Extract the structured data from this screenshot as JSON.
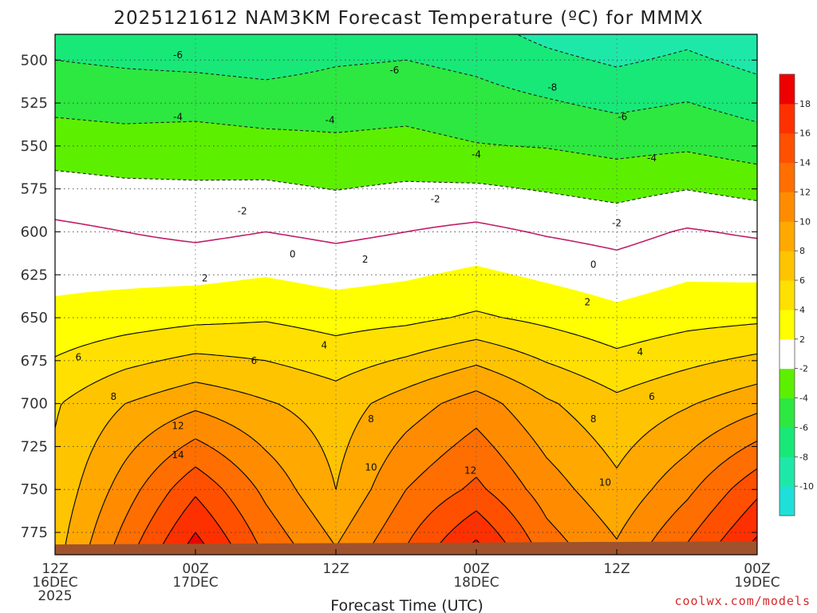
{
  "chart_data": {
    "type": "heatmap",
    "title": "2025121612 NAM3KM Forecast Temperature (ºC) for MMMX",
    "xlabel": "Forecast Time (UTC)",
    "ylabel": "",
    "x_ticks": [
      {
        "hours": 0,
        "line1": "12Z",
        "line2": "16DEC",
        "line3": "2025"
      },
      {
        "hours": 12,
        "line1": "00Z",
        "line2": "17DEC",
        "line3": ""
      },
      {
        "hours": 24,
        "line1": "12Z",
        "line2": "",
        "line3": ""
      },
      {
        "hours": 36,
        "line1": "00Z",
        "line2": "18DEC",
        "line3": ""
      },
      {
        "hours": 48,
        "line1": "12Z",
        "line2": "",
        "line3": ""
      },
      {
        "hours": 60,
        "line1": "00Z",
        "line2": "19DEC",
        "line3": ""
      }
    ],
    "xlim": [
      0,
      60
    ],
    "y_ticks": [
      500,
      525,
      550,
      575,
      600,
      625,
      650,
      675,
      700,
      725,
      750,
      775
    ],
    "ylim_hPa": [
      485,
      788
    ],
    "surface_pressure_hPa": 782,
    "colorbar": {
      "levels": [
        -12,
        -10,
        -8,
        -6,
        -4,
        -2,
        2,
        4,
        6,
        8,
        10,
        12,
        14,
        16,
        18,
        20
      ],
      "tick_labels": [
        "-10",
        "-8",
        "-6",
        "-4",
        "-2",
        "2",
        "4",
        "6",
        "8",
        "10",
        "12",
        "14",
        "16",
        "18"
      ],
      "colors": [
        "#1ee0d8",
        "#1ee8a8",
        "#18e878",
        "#2de840",
        "#5cf000",
        "#ffffff",
        "#ffff00",
        "#ffe000",
        "#ffc400",
        "#ffa800",
        "#ff8c00",
        "#ff6e00",
        "#ff5000",
        "#ff3000",
        "#ee0000"
      ]
    },
    "series": [
      {
        "name": "T at 500 hPa",
        "values": [
          -6.0,
          -6.3,
          -6.5,
          -6.8,
          -6.2,
          -6.0,
          -6.5,
          -7.5,
          -8.3,
          -7.6,
          -8.6
        ]
      },
      {
        "name": "T at 550 hPa",
        "values": [
          -3.0,
          -3.2,
          -3.0,
          -3.3,
          -3.6,
          -3.4,
          -3.9,
          -4.1,
          -4.6,
          -4.3,
          -5.0
        ]
      },
      {
        "name": "T at 600 hPa",
        "values": [
          0.5,
          0.0,
          -0.5,
          0.0,
          -0.5,
          0.0,
          0.5,
          -0.2,
          -0.7,
          0.2,
          -0.3
        ]
      },
      {
        "name": "T at 650 hPa",
        "values": [
          2.5,
          3.0,
          3.5,
          3.8,
          3.2,
          3.5,
          4.3,
          3.5,
          2.6,
          3.3,
          3.6
        ]
      },
      {
        "name": "T at 700 hPa",
        "values": [
          5.8,
          8.0,
          9.5,
          8.2,
          7.0,
          9.0,
          11.0,
          8.3,
          6.5,
          7.8,
          9.3
        ]
      },
      {
        "name": "T at 750 hPa",
        "values": [
          6.5,
          11.0,
          15.6,
          11.5,
          8.0,
          12.0,
          14.5,
          11.0,
          8.5,
          11.5,
          15.5
        ]
      },
      {
        "name": "T at 775 hPa",
        "values": [
          7.0,
          12.5,
          18.0,
          13.0,
          9.5,
          13.5,
          17.5,
          12.5,
          9.8,
          13.5,
          17.8
        ]
      }
    ],
    "series_hours": [
      0,
      6,
      12,
      18,
      24,
      30,
      36,
      42,
      48,
      54,
      60
    ],
    "contour_labels": [
      {
        "text": "-6",
        "hour": 10.5,
        "p": 497
      },
      {
        "text": "-6",
        "hour": 29.0,
        "p": 506
      },
      {
        "text": "-8",
        "hour": 42.5,
        "p": 516
      },
      {
        "text": "-4",
        "hour": 10.5,
        "p": 533
      },
      {
        "text": "-4",
        "hour": 23.5,
        "p": 535
      },
      {
        "text": "-6",
        "hour": 48.5,
        "p": 533
      },
      {
        "text": "-4",
        "hour": 36.0,
        "p": 555
      },
      {
        "text": "-4",
        "hour": 51.0,
        "p": 557
      },
      {
        "text": "-2",
        "hour": 32.5,
        "p": 581
      },
      {
        "text": "-2",
        "hour": 16.0,
        "p": 588
      },
      {
        "text": "-2",
        "hour": 48.0,
        "p": 595
      },
      {
        "text": "0",
        "hour": 20.3,
        "p": 613
      },
      {
        "text": "0",
        "hour": 46.0,
        "p": 619
      },
      {
        "text": "2",
        "hour": 26.5,
        "p": 616
      },
      {
        "text": "2",
        "hour": 12.8,
        "p": 627
      },
      {
        "text": "2",
        "hour": 45.5,
        "p": 641
      },
      {
        "text": "4",
        "hour": 23.0,
        "p": 666
      },
      {
        "text": "4",
        "hour": 50.0,
        "p": 670
      },
      {
        "text": "6",
        "hour": 2.0,
        "p": 673
      },
      {
        "text": "6",
        "hour": 17.0,
        "p": 675
      },
      {
        "text": "6",
        "hour": 51.0,
        "p": 696
      },
      {
        "text": "8",
        "hour": 5.0,
        "p": 696
      },
      {
        "text": "8",
        "hour": 27.0,
        "p": 709
      },
      {
        "text": "8",
        "hour": 46.0,
        "p": 709
      },
      {
        "text": "10",
        "hour": 27.0,
        "p": 737
      },
      {
        "text": "10",
        "hour": 47.0,
        "p": 746
      },
      {
        "text": "12",
        "hour": 10.5,
        "p": 713
      },
      {
        "text": "12",
        "hour": 35.5,
        "p": 739
      },
      {
        "text": "14",
        "hour": 10.5,
        "p": 730
      }
    ],
    "credit": "coolwx.com/models"
  }
}
